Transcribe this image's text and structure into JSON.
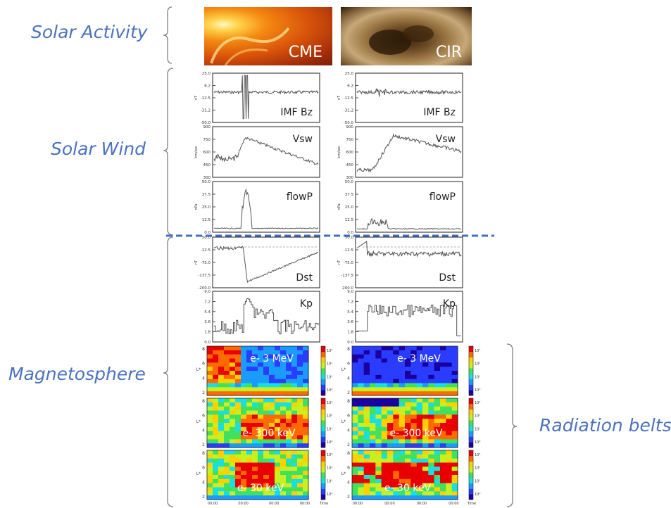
{
  "categories": {
    "solar_activity": "Solar Activity",
    "solar_wind": "Solar Wind",
    "magnetosphere": "Magnetosphere",
    "radiation_belts": "Radiation belts"
  },
  "images": {
    "left_label": "CME",
    "right_label": "CIR"
  },
  "panels": {
    "imf_bz": {
      "label": "IMF Bz",
      "ylabel": "nT",
      "ticks": [
        "25.0",
        "6.2",
        "-12.5",
        "-31.2",
        "-50.0"
      ]
    },
    "vsw": {
      "label": "Vsw",
      "ylabel": "km/sec",
      "ticks": [
        "900",
        "750",
        "600",
        "450",
        "300"
      ]
    },
    "flowp": {
      "label": "flowP",
      "ylabel": "nPa",
      "ticks": [
        "50.0",
        "37.5",
        "25.0",
        "12.5",
        "0.0"
      ]
    },
    "dst": {
      "label": "Dst",
      "ylabel": "nT",
      "ticks": [
        "50.0",
        "-12.5",
        "-75.0",
        "-137.5",
        "-200.0"
      ]
    },
    "kp": {
      "label": "Kp",
      "ylabel": "",
      "ticks": [
        "9.0",
        "7.2",
        "5.4",
        "3.6",
        "1.8",
        "0.0"
      ]
    }
  },
  "spectrograms": {
    "e3mev": "e- 3 MeV",
    "e300kev": "e- 300 keV",
    "e30kev": "e- 30 keV",
    "lticks": [
      "8",
      "6",
      "4",
      "2"
    ],
    "lshell": "L*",
    "colorbar_ticks": [
      "10³",
      "10²",
      "10¹",
      "10⁰"
    ],
    "xtick": "00:00",
    "xunit": "Time"
  },
  "colors": {
    "accent": "#4a72c0",
    "trace": "#555555",
    "dashed_separator": "#3f6fc4"
  }
}
